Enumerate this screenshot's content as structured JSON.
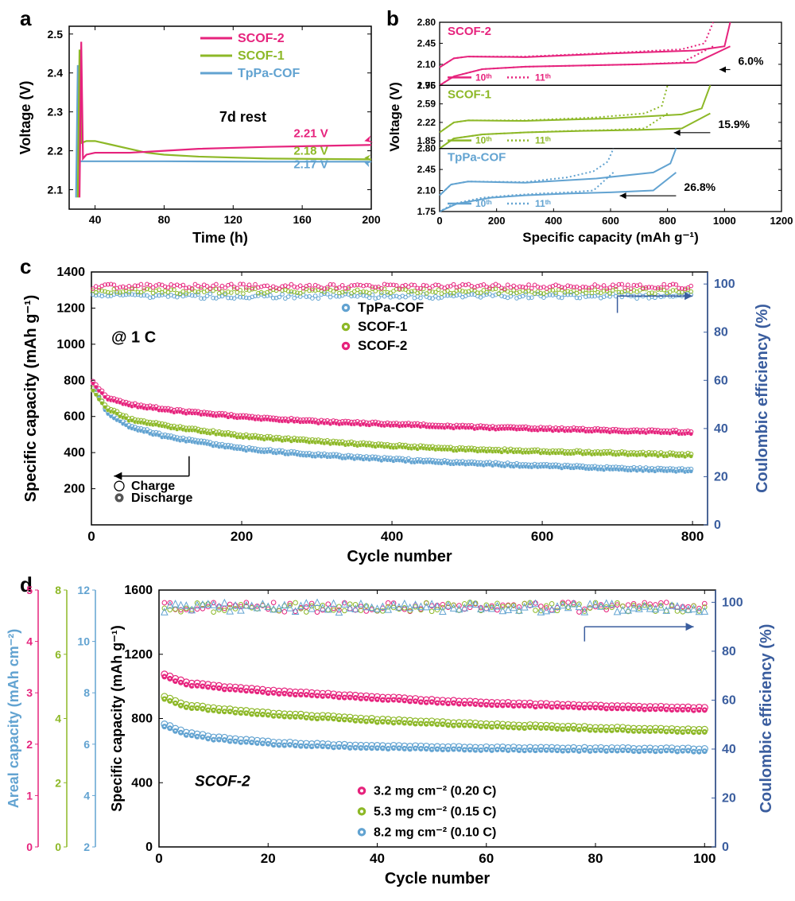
{
  "colors": {
    "scof2": "#e6237d",
    "scof1": "#8db827",
    "tppa": "#62a3d1",
    "ceAxis": "#3a5d9e",
    "black": "#000000"
  },
  "panelA": {
    "label": "a",
    "xLabel": "Time (h)",
    "yLabel": "Voltage (V)",
    "xlim": [
      25,
      200
    ],
    "ylim": [
      2.05,
      2.52
    ],
    "xticks": [
      40,
      80,
      120,
      160,
      200
    ],
    "yticks": [
      2.1,
      2.2,
      2.3,
      2.4,
      2.5
    ],
    "annotation": "7d rest",
    "legend": [
      {
        "label": "SCOF-2",
        "color": "#e6237d"
      },
      {
        "label": "SCOF-1",
        "color": "#8db827"
      },
      {
        "label": "TpPa-COF",
        "color": "#62a3d1"
      }
    ],
    "endLabels": [
      {
        "text": "2.21 V",
        "color": "#e6237d",
        "y": 2.235
      },
      {
        "text": "2.18 V",
        "color": "#8db827",
        "y": 2.19
      },
      {
        "text": "2.17 V",
        "color": "#62a3d1",
        "y": 2.155
      }
    ],
    "series": {
      "scof2": [
        [
          31,
          2.08
        ],
        [
          32,
          2.48
        ],
        [
          33,
          2.18
        ],
        [
          35,
          2.19
        ],
        [
          40,
          2.195
        ],
        [
          50,
          2.195
        ],
        [
          60,
          2.195
        ],
        [
          80,
          2.2
        ],
        [
          100,
          2.205
        ],
        [
          140,
          2.21
        ],
        [
          200,
          2.215
        ]
      ],
      "scof1": [
        [
          30,
          2.08
        ],
        [
          31,
          2.46
        ],
        [
          32,
          2.22
        ],
        [
          35,
          2.225
        ],
        [
          40,
          2.225
        ],
        [
          50,
          2.215
        ],
        [
          60,
          2.205
        ],
        [
          70,
          2.195
        ],
        [
          80,
          2.19
        ],
        [
          100,
          2.185
        ],
        [
          140,
          2.18
        ],
        [
          200,
          2.178
        ]
      ],
      "tppa": [
        [
          29,
          2.08
        ],
        [
          30,
          2.42
        ],
        [
          31,
          2.173
        ],
        [
          40,
          2.173
        ],
        [
          80,
          2.173
        ],
        [
          140,
          2.172
        ],
        [
          200,
          2.172
        ]
      ]
    }
  },
  "panelB": {
    "label": "b",
    "xLabel": "Specific capacity (mAh g⁻¹)",
    "yLabel": "Voltage (V)",
    "xlim": [
      0,
      1200
    ],
    "xticks": [
      0,
      200,
      400,
      600,
      800,
      1000,
      1200
    ],
    "sub": [
      {
        "name": "SCOF-2",
        "color": "#e6237d",
        "ylim": [
          1.75,
          2.8
        ],
        "yticks": [
          1.75,
          2.1,
          2.45,
          2.8
        ],
        "pct": "6.0%",
        "s10c": [
          [
            0,
            2.05
          ],
          [
            50,
            2.2
          ],
          [
            100,
            2.23
          ],
          [
            300,
            2.22
          ],
          [
            600,
            2.28
          ],
          [
            900,
            2.33
          ],
          [
            1000,
            2.4
          ],
          [
            1020,
            2.8
          ]
        ],
        "s10d": [
          [
            1020,
            2.4
          ],
          [
            900,
            2.13
          ],
          [
            700,
            2.1
          ],
          [
            500,
            2.08
          ],
          [
            300,
            2.06
          ],
          [
            150,
            2.02
          ],
          [
            50,
            1.9
          ],
          [
            0,
            1.75
          ]
        ],
        "s11c": [
          [
            0,
            2.05
          ],
          [
            50,
            2.2
          ],
          [
            100,
            2.23
          ],
          [
            300,
            2.23
          ],
          [
            600,
            2.29
          ],
          [
            850,
            2.35
          ],
          [
            930,
            2.45
          ],
          [
            960,
            2.8
          ]
        ],
        "s11d": [
          [
            960,
            2.4
          ],
          [
            850,
            2.13
          ],
          [
            700,
            2.1
          ],
          [
            500,
            2.08
          ],
          [
            300,
            2.06
          ],
          [
            150,
            2.02
          ],
          [
            50,
            1.9
          ],
          [
            0,
            1.75
          ]
        ]
      },
      {
        "name": "SCOF-1",
        "color": "#8db827",
        "ylim": [
          1.7,
          2.96
        ],
        "yticks": [
          1.85,
          2.22,
          2.59,
          2.96
        ],
        "pct": "15.9%",
        "s10c": [
          [
            0,
            2.02
          ],
          [
            50,
            2.22
          ],
          [
            100,
            2.26
          ],
          [
            300,
            2.25
          ],
          [
            600,
            2.3
          ],
          [
            850,
            2.38
          ],
          [
            920,
            2.5
          ],
          [
            950,
            2.96
          ]
        ],
        "s10d": [
          [
            950,
            2.4
          ],
          [
            850,
            2.1
          ],
          [
            700,
            2.07
          ],
          [
            500,
            2.05
          ],
          [
            300,
            2.02
          ],
          [
            150,
            1.98
          ],
          [
            50,
            1.9
          ],
          [
            0,
            1.7
          ]
        ],
        "s11c": [
          [
            0,
            2.02
          ],
          [
            50,
            2.22
          ],
          [
            100,
            2.26
          ],
          [
            300,
            2.26
          ],
          [
            550,
            2.32
          ],
          [
            720,
            2.4
          ],
          [
            780,
            2.55
          ],
          [
            800,
            2.96
          ]
        ],
        "s11d": [
          [
            800,
            2.4
          ],
          [
            720,
            2.1
          ],
          [
            600,
            2.07
          ],
          [
            450,
            2.05
          ],
          [
            300,
            2.02
          ],
          [
            150,
            1.98
          ],
          [
            50,
            1.9
          ],
          [
            0,
            1.7
          ]
        ]
      },
      {
        "name": "TpPa-COF",
        "color": "#62a3d1",
        "ylim": [
          1.75,
          2.8
        ],
        "yticks": [
          1.75,
          2.1,
          2.45,
          2.8
        ],
        "pct": "26.8%",
        "s10c": [
          [
            0,
            2.02
          ],
          [
            40,
            2.2
          ],
          [
            100,
            2.25
          ],
          [
            300,
            2.23
          ],
          [
            550,
            2.3
          ],
          [
            750,
            2.4
          ],
          [
            810,
            2.55
          ],
          [
            830,
            2.8
          ]
        ],
        "s10d": [
          [
            830,
            2.4
          ],
          [
            750,
            2.1
          ],
          [
            600,
            2.07
          ],
          [
            450,
            2.05
          ],
          [
            300,
            2.02
          ],
          [
            180,
            1.98
          ],
          [
            60,
            1.88
          ],
          [
            0,
            1.75
          ]
        ],
        "s11c": [
          [
            0,
            2.02
          ],
          [
            40,
            2.2
          ],
          [
            100,
            2.25
          ],
          [
            300,
            2.24
          ],
          [
            450,
            2.32
          ],
          [
            540,
            2.42
          ],
          [
            590,
            2.58
          ],
          [
            610,
            2.8
          ]
        ],
        "s11d": [
          [
            610,
            2.4
          ],
          [
            540,
            2.1
          ],
          [
            450,
            2.07
          ],
          [
            350,
            2.05
          ],
          [
            250,
            2.02
          ],
          [
            150,
            1.98
          ],
          [
            50,
            1.88
          ],
          [
            0,
            1.75
          ]
        ]
      }
    ],
    "cycleLegend": [
      {
        "label": "10ᵗʰ",
        "style": "solid"
      },
      {
        "label": "11ᵗʰ",
        "style": "dotted"
      }
    ]
  },
  "panelC": {
    "label": "c",
    "xLabel": "Cycle number",
    "yLabelLeft": "Specific capacity (mAh g⁻¹)",
    "yLabelRight": "Coulombic efficiency (%)",
    "xlim": [
      0,
      820
    ],
    "ylimL": [
      0,
      1400
    ],
    "ylimR": [
      0,
      105
    ],
    "xticks": [
      0,
      200,
      400,
      600,
      800
    ],
    "yticksL": [
      200,
      400,
      600,
      800,
      1000,
      1200,
      1400
    ],
    "yticksR": [
      0,
      20,
      40,
      60,
      80,
      100
    ],
    "rateLabel": "@ 1 C",
    "legend": [
      {
        "label": "TpPa-COF",
        "color": "#62a3d1"
      },
      {
        "label": "SCOF-1",
        "color": "#8db827"
      },
      {
        "label": "SCOF-2",
        "color": "#e6237d"
      }
    ],
    "chargeLegend": [
      {
        "label": "Charge",
        "filled": false
      },
      {
        "label": "Discharge",
        "filled": true
      }
    ],
    "capGuide": {
      "scof2": [
        [
          2,
          780
        ],
        [
          20,
          700
        ],
        [
          50,
          660
        ],
        [
          100,
          630
        ],
        [
          200,
          590
        ],
        [
          300,
          565
        ],
        [
          400,
          550
        ],
        [
          500,
          535
        ],
        [
          600,
          525
        ],
        [
          700,
          515
        ],
        [
          800,
          505
        ]
      ],
      "scof1": [
        [
          2,
          740
        ],
        [
          20,
          640
        ],
        [
          50,
          580
        ],
        [
          100,
          540
        ],
        [
          200,
          485
        ],
        [
          300,
          455
        ],
        [
          400,
          430
        ],
        [
          500,
          410
        ],
        [
          600,
          400
        ],
        [
          700,
          390
        ],
        [
          800,
          380
        ]
      ],
      "tppa": [
        [
          2,
          780
        ],
        [
          20,
          620
        ],
        [
          50,
          540
        ],
        [
          100,
          480
        ],
        [
          200,
          415
        ],
        [
          300,
          380
        ],
        [
          400,
          355
        ],
        [
          500,
          335
        ],
        [
          600,
          320
        ],
        [
          700,
          305
        ],
        [
          800,
          295
        ]
      ]
    },
    "ceGuide": {
      "scof2": 99,
      "scof1": 97,
      "tppa": 95
    }
  },
  "panelD": {
    "label": "d",
    "xLabel": "Cycle number",
    "yLabelLeft": "Specific capacity (mAh g⁻¹)",
    "yLabelRight": "Coulombic efficiency (%)",
    "arealLabel": "Areal capacity (mAh cm⁻²)",
    "xlim": [
      0,
      102
    ],
    "ylimL": [
      0,
      1600
    ],
    "ylimR": [
      0,
      105
    ],
    "xticks": [
      0,
      20,
      40,
      60,
      80,
      100
    ],
    "yticksL": [
      0,
      400,
      800,
      1200,
      1600
    ],
    "yticksR": [
      0,
      20,
      40,
      60,
      80,
      100
    ],
    "sampleLabel": "SCOF-2",
    "arealAxes": [
      {
        "color": "#62a3d1",
        "ticks": [
          2,
          4,
          6,
          8,
          10,
          12
        ]
      },
      {
        "color": "#8db827",
        "ticks": [
          0,
          2,
          4,
          6,
          8
        ]
      },
      {
        "color": "#e6237d",
        "ticks": [
          0,
          1,
          2,
          3,
          4,
          5
        ]
      }
    ],
    "legend": [
      {
        "label": "3.2 mg cm⁻² (0.20 C)",
        "color": "#e6237d"
      },
      {
        "label": "5.3 mg cm⁻² (0.15 C)",
        "color": "#8db827"
      },
      {
        "label": "8.2 mg cm⁻² (0.10 C)",
        "color": "#62a3d1"
      }
    ],
    "capGuide": {
      "pink": [
        [
          1,
          1060
        ],
        [
          5,
          1010
        ],
        [
          10,
          990
        ],
        [
          20,
          960
        ],
        [
          30,
          940
        ],
        [
          40,
          920
        ],
        [
          50,
          900
        ],
        [
          60,
          885
        ],
        [
          70,
          875
        ],
        [
          80,
          865
        ],
        [
          90,
          858
        ],
        [
          100,
          852
        ]
      ],
      "green": [
        [
          1,
          920
        ],
        [
          5,
          870
        ],
        [
          10,
          850
        ],
        [
          20,
          820
        ],
        [
          30,
          800
        ],
        [
          40,
          780
        ],
        [
          50,
          765
        ],
        [
          60,
          750
        ],
        [
          70,
          740
        ],
        [
          80,
          730
        ],
        [
          90,
          722
        ],
        [
          100,
          715
        ]
      ],
      "blue": [
        [
          1,
          750
        ],
        [
          5,
          700
        ],
        [
          10,
          670
        ],
        [
          20,
          640
        ],
        [
          30,
          625
        ],
        [
          40,
          615
        ],
        [
          50,
          610
        ],
        [
          60,
          605
        ],
        [
          70,
          602
        ],
        [
          80,
          600
        ],
        [
          90,
          598
        ],
        [
          100,
          596
        ]
      ]
    },
    "ceLevel": 98
  }
}
